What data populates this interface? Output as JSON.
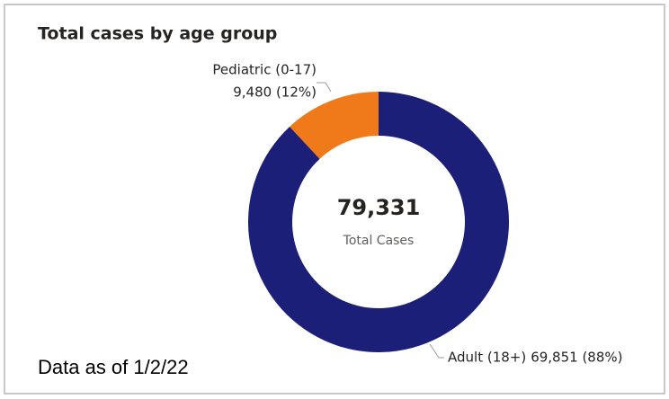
{
  "chart_data": {
    "type": "donut",
    "title": "Total cases by age group",
    "categories": [
      "Pediatric (0-17)",
      "Adult (18+)"
    ],
    "values": [
      9480,
      69851
    ],
    "value_labels": [
      "9,480 (12%)",
      "69,851 (88%)"
    ],
    "colors": [
      "#f07a1a",
      "#1b1f78"
    ],
    "center_value": 79331,
    "center_value_label": "79,331",
    "center_caption": "Total Cases",
    "footnote": "Data as of 1/2/22"
  }
}
